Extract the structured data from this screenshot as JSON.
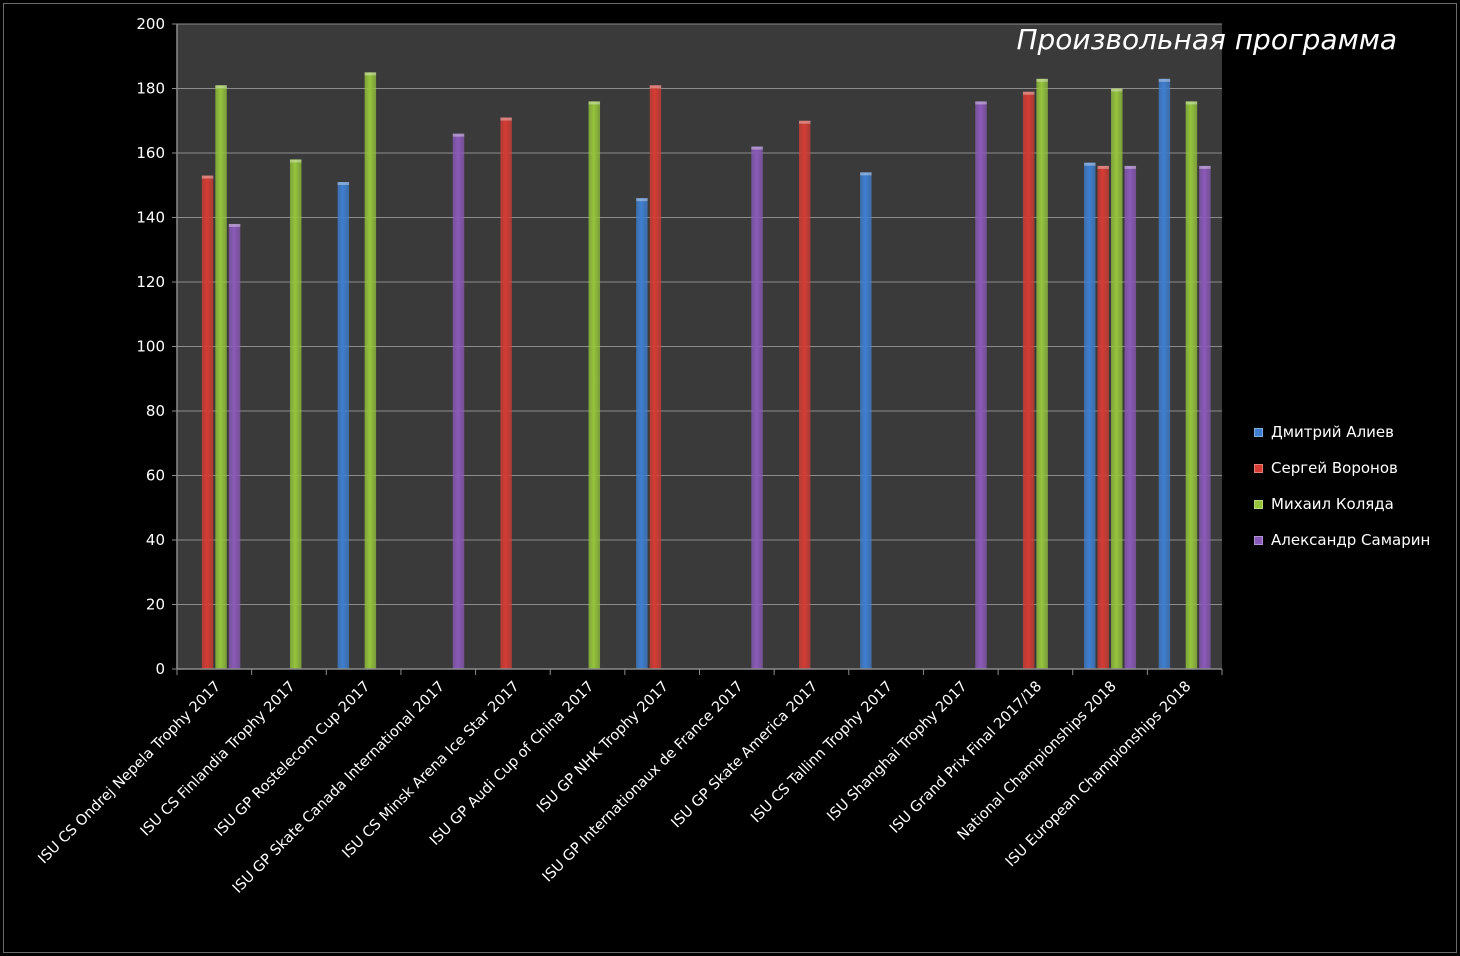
{
  "chart_data": {
    "type": "bar",
    "title": "Произвольная программа",
    "xlabel": "",
    "ylabel": "",
    "ylim": [
      0,
      200
    ],
    "yticks": [
      0,
      20,
      40,
      60,
      80,
      100,
      120,
      140,
      160,
      180,
      200
    ],
    "grid": true,
    "legend_position": "right",
    "categories": [
      "ISU CS Ondrej Nepela Trophy 2017",
      "ISU CS Finlandia Trophy 2017",
      "ISU GP Rostelecom Cup 2017",
      "ISU GP Skate Canada International  2017",
      "ISU CS Minsk Arena Ice Star 2017",
      "ISU GP Audi Cup of China 2017",
      "ISU GP NHK Trophy 2017",
      "ISU GP Internationaux  de France 2017",
      "ISU GP Skate America 2017",
      "ISU CS Tallinn Trophy 2017",
      "ISU Shanghai Trophy 2017",
      "ISU Grand Prix Final 2017/18",
      "National Championships  2018",
      "ISU European Championships  2018"
    ],
    "series": [
      {
        "name": "Дмитрий Алиев",
        "color": "#3f7fd0",
        "values": [
          null,
          null,
          151,
          null,
          null,
          null,
          146,
          null,
          null,
          154,
          null,
          null,
          157,
          183
        ]
      },
      {
        "name": "Сергей Воронов",
        "color": "#d43c34",
        "values": [
          153,
          null,
          null,
          null,
          171,
          null,
          181,
          null,
          170,
          null,
          null,
          179,
          156,
          null
        ]
      },
      {
        "name": "Михаил Коляда",
        "color": "#95c43c",
        "values": [
          181,
          158,
          185,
          null,
          null,
          176,
          null,
          null,
          null,
          null,
          null,
          183,
          180,
          176
        ]
      },
      {
        "name": "Александр Самарин",
        "color": "#8a5ab8",
        "values": [
          138,
          null,
          null,
          166,
          null,
          null,
          null,
          162,
          null,
          null,
          176,
          null,
          156,
          156
        ]
      }
    ]
  }
}
